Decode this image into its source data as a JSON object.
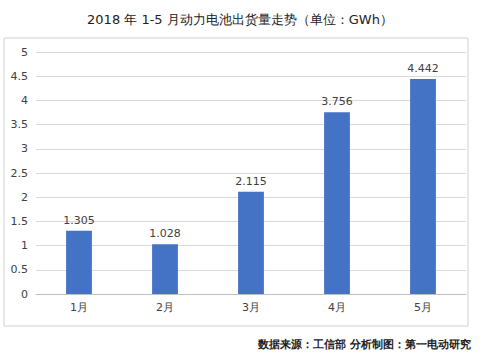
{
  "chart_data": {
    "type": "bar",
    "title": "2018 年 1-5 月动力电池出货量走势（单位：GWh）",
    "annotations": [
      "数据来源：工信部 分析制图：第一电动研究"
    ],
    "categories": [
      "1月",
      "2月",
      "3月",
      "4月",
      "5月"
    ],
    "values": [
      1.305,
      1.028,
      2.115,
      3.756,
      4.442
    ],
    "color": "#4472c4",
    "ylim": [
      0,
      5
    ],
    "yticks": [
      0,
      0.5,
      1,
      1.5,
      2,
      2.5,
      3,
      3.5,
      4,
      4.5,
      5
    ],
    "grid": true,
    "data_labels": true
  }
}
